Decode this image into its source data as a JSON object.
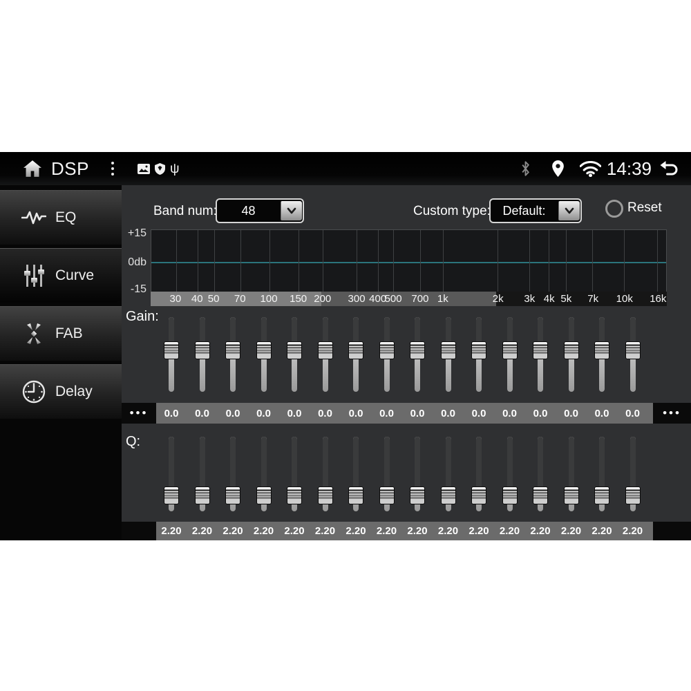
{
  "statusbar": {
    "title": "DSP",
    "time": "14:39",
    "icons": [
      "home-icon",
      "overflow-menu-icon",
      "gallery-icon",
      "shield-icon",
      "usb-icon",
      "bluetooth-icon",
      "location-icon",
      "wifi-icon",
      "back-icon"
    ],
    "usb_glyph": "ψ"
  },
  "sidebar": {
    "items": [
      {
        "label": "EQ",
        "icon": "waveform-icon",
        "selected": false
      },
      {
        "label": "Curve",
        "icon": "fader-sliders-icon",
        "selected": true
      },
      {
        "label": "FAB",
        "icon": "fab-arrows-icon",
        "selected": false
      },
      {
        "label": "Delay",
        "icon": "clock-icon",
        "selected": false
      }
    ]
  },
  "controls": {
    "band_num_label": "Band num:",
    "band_num_value": "48",
    "custom_type_label": "Custom type:",
    "custom_type_value": "Default:",
    "reset_label": "Reset"
  },
  "graph": {
    "y_labels": [
      "+15",
      "0db",
      "-15"
    ],
    "zero_line_color": "#2b747c",
    "curve": "flat at 0db",
    "freq_ticks": [
      {
        "label": "30",
        "pct": 4.8
      },
      {
        "label": "40",
        "pct": 9.0
      },
      {
        "label": "50",
        "pct": 12.2
      },
      {
        "label": "70",
        "pct": 17.3
      },
      {
        "label": "100",
        "pct": 22.9
      },
      {
        "label": "150",
        "pct": 28.6
      },
      {
        "label": "200",
        "pct": 33.3
      },
      {
        "label": "300",
        "pct": 39.9
      },
      {
        "label": "400",
        "pct": 44.0
      },
      {
        "label": "500",
        "pct": 47.0
      },
      {
        "label": "700",
        "pct": 52.2
      },
      {
        "label": "1k",
        "pct": 56.6
      },
      {
        "label": "2k",
        "pct": 67.3
      },
      {
        "label": "3k",
        "pct": 73.4
      },
      {
        "label": "4k",
        "pct": 77.2
      },
      {
        "label": "5k",
        "pct": 80.5
      },
      {
        "label": "7k",
        "pct": 85.7
      },
      {
        "label": "10k",
        "pct": 91.8
      },
      {
        "label": "16k",
        "pct": 98.3
      }
    ],
    "scroll_segments": [
      {
        "from": 0,
        "to": 33.0,
        "color": "#7f7f7f"
      },
      {
        "from": 33.0,
        "to": 67.0,
        "color": "#595959"
      },
      {
        "from": 67.0,
        "to": 100,
        "color": "#161616"
      }
    ]
  },
  "gain": {
    "label": "Gain:",
    "values": [
      "0.0",
      "0.0",
      "0.0",
      "0.0",
      "0.0",
      "0.0",
      "0.0",
      "0.0",
      "0.0",
      "0.0",
      "0.0",
      "0.0",
      "0.0",
      "0.0",
      "0.0",
      "0.0"
    ]
  },
  "q": {
    "label": "Q:",
    "values": [
      "2.20",
      "2.20",
      "2.20",
      "2.20",
      "2.20",
      "2.20",
      "2.20",
      "2.20",
      "2.20",
      "2.20",
      "2.20",
      "2.20",
      "2.20",
      "2.20",
      "2.20",
      "2.20"
    ]
  },
  "pager": {
    "prev": "•••",
    "next": "•••"
  },
  "colors": {
    "content_bg": "#2f3032",
    "graph_bg": "#17181a",
    "value_bar": "#6b6b6b",
    "zero_line": "#2b747c",
    "statusbar_bg": "#000000"
  }
}
